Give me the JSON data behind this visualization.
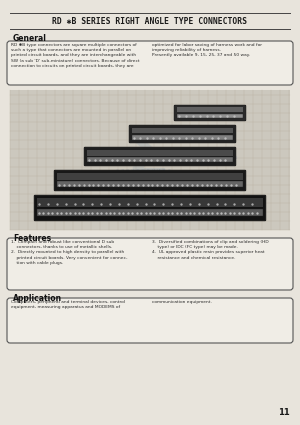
{
  "bg_color": "#e8e4dc",
  "title": "RD ✱B SERIES RIGHT ANGLE TYPE CONNECTORS",
  "title_fontsize": 5.8,
  "title_color": "#1a1a1a",
  "header_line_color": "#444444",
  "general_heading": "General",
  "general_text_left": "RD ✱B type connectors are square multiple connectors of\nsuch a type that connectors are mounted in parallel on\nprinted circuit boards, and they are interchangeable with\nSW (a sub 'D' sub-miniature) connectors. Because of direct\nconnection to circuits on printed circuit boards, they are",
  "general_text_right": "optimized for labor saving of harness work and for\nimproving reliability of harness.\nPresently available 9, 15, 25, 37 and 50 way.",
  "features_heading": "Features",
  "features_text_left": "1.  Compact and robust like conventional D sub\n    connectors, thanks to use of metallic shells.\n2.  Directly mounted to high density to parallel with\n    printed circuit boards. Very convenient for connec-\n    tion with cable plugs.",
  "features_text_right": "3.  Diversified combinations of clip and soldering (HD\n    type) or IDC (FC type) may be made.\n4.  UL approved plastic resin provides superior heat\n    resistance and chemical resistance.",
  "application_heading": "Application",
  "application_text": "Computers, peripheral and terminal devices, control\nequipment, measuring apparatus and MODEMS of",
  "application_text_right": "communication equipment.",
  "page_number": "11",
  "box_bg": "#f0ede6",
  "box_border": "#555555",
  "section_heading_color": "#111111",
  "body_text_color": "#2a2a2a",
  "grid_color": "#b8b0a0",
  "photo_bg": "#ccc8be"
}
